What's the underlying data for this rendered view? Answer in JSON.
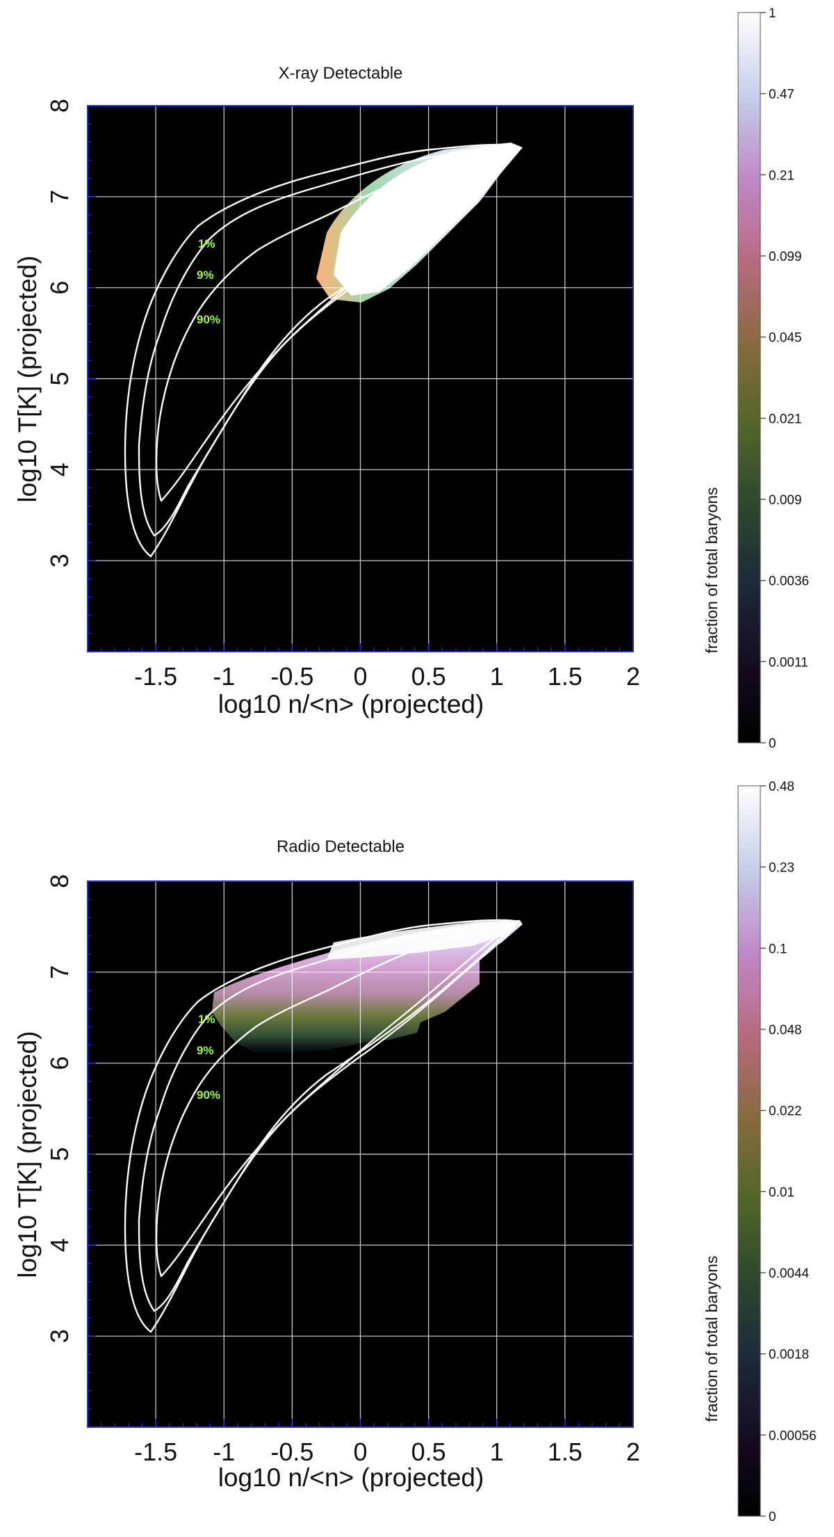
{
  "chart_data": [
    {
      "type": "heatmap",
      "title": "X-ray Detectable",
      "xlabel": "log10 n/<n> (projected)",
      "ylabel": "log10 T[K] (projected)",
      "xlim": [
        -2,
        2
      ],
      "ylim": [
        2,
        8
      ],
      "xticks": [
        "-1.5",
        "-1",
        "-0.5",
        "0",
        "0.5",
        "1",
        "1.5",
        "2"
      ],
      "yticks": [
        "3",
        "4",
        "5",
        "6",
        "7",
        "8"
      ],
      "grid": true,
      "contour_labels": [
        "1%",
        "9%",
        "90%"
      ],
      "colorbar_label": "fraction of total baryons",
      "colorbar_ticks": [
        "0",
        "0.0011",
        "0.0036",
        "0.009",
        "0.021",
        "0.045",
        "0.099",
        "0.21",
        "0.47",
        "1"
      ],
      "colorbar_range": [
        0,
        1
      ]
    },
    {
      "type": "heatmap",
      "title": "Radio Detectable",
      "xlabel": "log10 n/<n> (projected)",
      "ylabel": "log10 T[K] (projected)",
      "xlim": [
        -2,
        2
      ],
      "ylim": [
        2,
        8
      ],
      "xticks": [
        "-1.5",
        "-1",
        "-0.5",
        "0",
        "0.5",
        "1",
        "1.5",
        "2"
      ],
      "yticks": [
        "3",
        "4",
        "5",
        "6",
        "7",
        "8"
      ],
      "grid": true,
      "contour_labels": [
        "1%",
        "9%",
        "90%"
      ],
      "colorbar_label": "fraction of total baryons",
      "colorbar_ticks": [
        "0",
        "0.00056",
        "0.0018",
        "0.0044",
        "0.01",
        "0.022",
        "0.048",
        "0.1",
        "0.23",
        "0.48"
      ],
      "colorbar_range": [
        0,
        0.48
      ]
    }
  ],
  "colors": {
    "background": "#000000",
    "contour": "#ffffff",
    "contour_label": "#9cff3c",
    "frame": "#2b2bd4"
  }
}
